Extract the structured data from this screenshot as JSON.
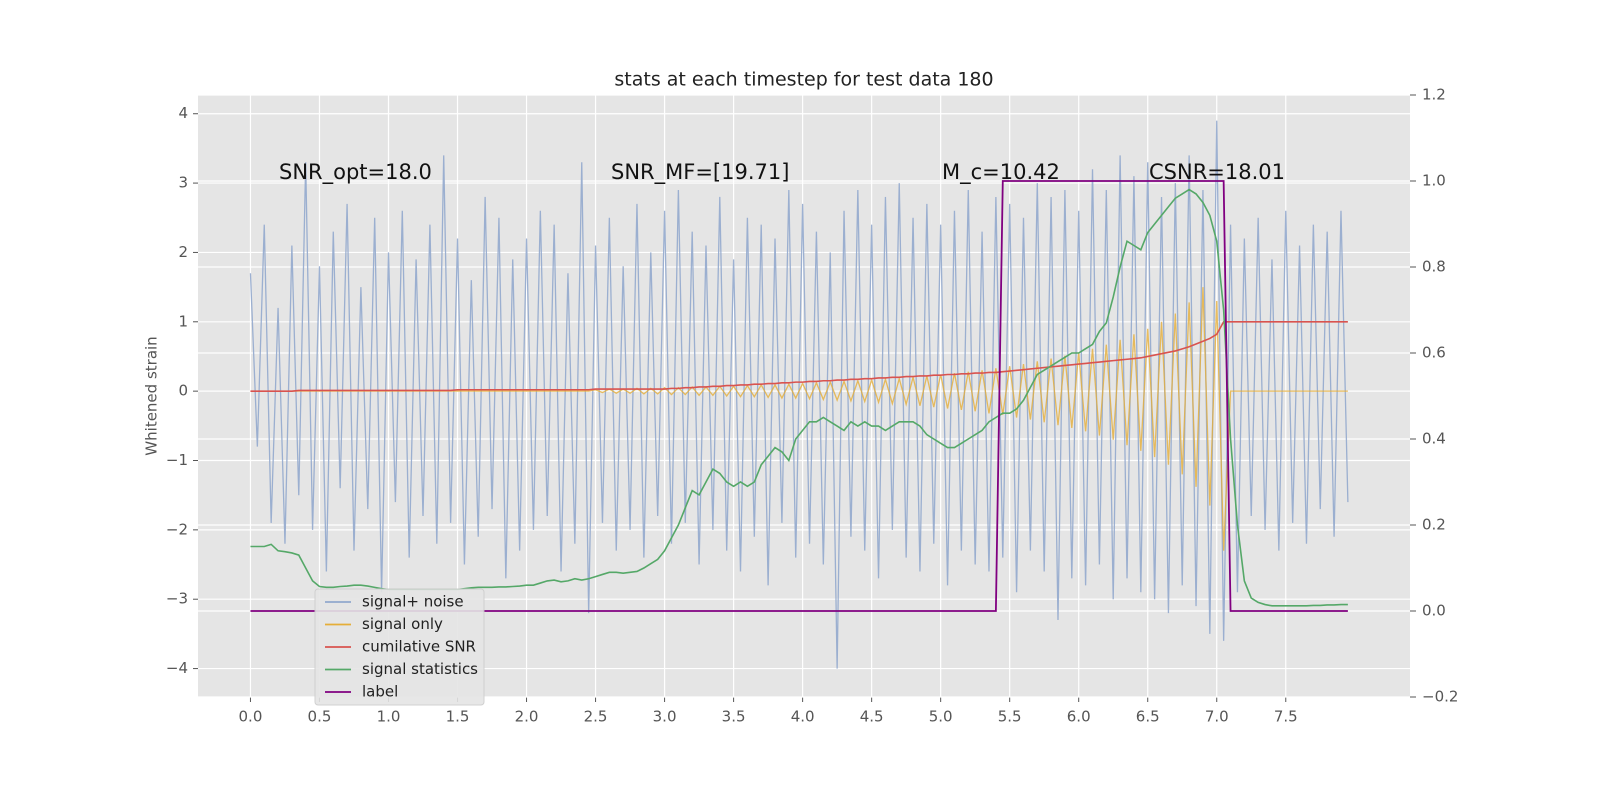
{
  "chart_data": {
    "type": "line",
    "title": "stats at each timestep for test data 180",
    "ylabel": "Whitened strain",
    "annotations": [
      "SNR_opt=18.0",
      "SNR_MF=[19.71]",
      "M_c=10.42",
      "CSNR=18.01"
    ],
    "xlim": [
      -0.38,
      8.4
    ],
    "ylim": [
      -4.41,
      4.27
    ],
    "y2lim": [
      -0.2,
      1.2
    ],
    "xticks": [
      {
        "value": 0,
        "label": "0.0"
      },
      {
        "value": 0.5,
        "label": "0.5"
      },
      {
        "value": 1,
        "label": "1.0"
      },
      {
        "value": 1.5,
        "label": "1.5"
      },
      {
        "value": 2,
        "label": "2.0"
      },
      {
        "value": 2.5,
        "label": "2.5"
      },
      {
        "value": 3,
        "label": "3.0"
      },
      {
        "value": 3.5,
        "label": "3.5"
      },
      {
        "value": 4,
        "label": "4.0"
      },
      {
        "value": 4.5,
        "label": "4.5"
      },
      {
        "value": 5,
        "label": "5.0"
      },
      {
        "value": 5.5,
        "label": "5.5"
      },
      {
        "value": 6,
        "label": "6.0"
      },
      {
        "value": 6.5,
        "label": "6.5"
      },
      {
        "value": 7,
        "label": "7.0"
      },
      {
        "value": 7.5,
        "label": "7.5"
      }
    ],
    "yticks": [
      {
        "value": -4,
        "label": "−4"
      },
      {
        "value": -3,
        "label": "−3"
      },
      {
        "value": -2,
        "label": "−2"
      },
      {
        "value": -1,
        "label": "−1"
      },
      0,
      1,
      2,
      3,
      4
    ],
    "y2ticks": [
      {
        "value": -0.2,
        "label": "−0.2"
      },
      {
        "value": 0,
        "label": "0.0"
      },
      {
        "value": 0.2,
        "label": "0.2"
      },
      {
        "value": 0.4,
        "label": "0.4"
      },
      {
        "value": 0.6,
        "label": "0.6"
      },
      {
        "value": 0.8,
        "label": "0.8"
      },
      {
        "value": 1,
        "label": "1.0"
      },
      {
        "value": 1.2,
        "label": "1.2"
      }
    ],
    "grid": true,
    "legend_loc": "lower left",
    "x": [
      0,
      0.05,
      0.1,
      0.15,
      0.2,
      0.25,
      0.3,
      0.35,
      0.4,
      0.45,
      0.5,
      0.55,
      0.6,
      0.65,
      0.7,
      0.75,
      0.8,
      0.85,
      0.9,
      0.95,
      1,
      1.05,
      1.1,
      1.15,
      1.2,
      1.25,
      1.3,
      1.35,
      1.4,
      1.45,
      1.5,
      1.55,
      1.6,
      1.65,
      1.7,
      1.75,
      1.8,
      1.85,
      1.9,
      1.95,
      2,
      2.05,
      2.1,
      2.15,
      2.2,
      2.25,
      2.3,
      2.35,
      2.4,
      2.45,
      2.5,
      2.55,
      2.6,
      2.65,
      2.7,
      2.75,
      2.8,
      2.85,
      2.9,
      2.95,
      3,
      3.05,
      3.1,
      3.15,
      3.2,
      3.25,
      3.3,
      3.35,
      3.4,
      3.45,
      3.5,
      3.55,
      3.6,
      3.65,
      3.7,
      3.75,
      3.8,
      3.85,
      3.9,
      3.95,
      4,
      4.05,
      4.1,
      4.15,
      4.2,
      4.25,
      4.3,
      4.35,
      4.4,
      4.45,
      4.5,
      4.55,
      4.6,
      4.65,
      4.7,
      4.75,
      4.8,
      4.85,
      4.9,
      4.95,
      5,
      5.05,
      5.1,
      5.15,
      5.2,
      5.25,
      5.3,
      5.35,
      5.4,
      5.45,
      5.5,
      5.55,
      5.6,
      5.65,
      5.7,
      5.75,
      5.8,
      5.85,
      5.9,
      5.95,
      6,
      6.05,
      6.1,
      6.15,
      6.2,
      6.25,
      6.3,
      6.35,
      6.4,
      6.45,
      6.5,
      6.55,
      6.6,
      6.65,
      6.7,
      6.75,
      6.8,
      6.85,
      6.9,
      6.95,
      7,
      7.05,
      7.1,
      7.15,
      7.2,
      7.25,
      7.3,
      7.35,
      7.4,
      7.45,
      7.5,
      7.55,
      7.6,
      7.65,
      7.7,
      7.75,
      7.8,
      7.85,
      7.9,
      7.95
    ],
    "series": [
      {
        "name": "signal+ noise",
        "color": "#92a8cd",
        "values": [
          1.7,
          -0.8,
          2.4,
          -1.9,
          1.2,
          -2.2,
          2.1,
          -1.5,
          3.3,
          -2.0,
          1.8,
          -2.6,
          2.3,
          -1.4,
          2.7,
          -2.3,
          1.5,
          -1.7,
          2.5,
          -2.9,
          2.0,
          -1.6,
          2.6,
          -2.4,
          1.9,
          -1.8,
          2.4,
          -2.2,
          3.4,
          -1.9,
          2.2,
          -2.5,
          1.6,
          -2.1,
          2.8,
          -1.7,
          2.5,
          -2.7,
          1.9,
          -2.3,
          2.2,
          -2.0,
          2.6,
          -1.8,
          2.4,
          -2.6,
          1.7,
          -2.2,
          3.3,
          -3.2,
          2.1,
          -1.9,
          2.5,
          -2.3,
          1.8,
          -2.0,
          2.7,
          -2.4,
          2.0,
          -1.8,
          2.6,
          -2.2,
          2.9,
          -1.9,
          2.3,
          -2.5,
          2.1,
          -2.0,
          2.8,
          -2.3,
          1.9,
          -2.6,
          2.5,
          -2.1,
          2.4,
          -2.8,
          2.2,
          -1.9,
          2.9,
          -2.4,
          2.7,
          -2.2,
          2.3,
          -2.5,
          2.0,
          -4.0,
          2.6,
          -2.1,
          2.9,
          -2.3,
          2.4,
          -2.7,
          2.8,
          -2.0,
          3.0,
          -2.4,
          2.5,
          -2.6,
          2.7,
          -2.2,
          2.4,
          -2.8,
          2.6,
          -2.3,
          2.9,
          -2.5,
          2.3,
          -2.6,
          2.8,
          -2.4,
          2.7,
          -2.9,
          2.5,
          -2.3,
          3.0,
          -2.6,
          2.8,
          -3.3,
          2.9,
          -2.7,
          2.6,
          -2.8,
          3.2,
          -2.5,
          2.9,
          -3.0,
          3.4,
          -2.7,
          3.1,
          -2.9,
          3.3,
          -3.0,
          2.8,
          -3.2,
          3.0,
          -2.8,
          3.4,
          -3.1,
          2.9,
          -3.5,
          3.9,
          -3.6,
          2.4,
          -2.9,
          2.2,
          -1.8,
          2.5,
          -2.0,
          1.9,
          -2.3,
          2.6,
          -1.9,
          2.1,
          -2.2,
          2.4,
          -1.7,
          2.3,
          -2.1,
          2.6,
          -1.6
        ]
      },
      {
        "name": "signal only",
        "color": "#e5ae38",
        "values": [
          0,
          0,
          0,
          0,
          0,
          0,
          0,
          0,
          0,
          0,
          0,
          0,
          0,
          0,
          0,
          0,
          0,
          0,
          0,
          0,
          0,
          0,
          0,
          0,
          0,
          0,
          0,
          0,
          0,
          0,
          0,
          0,
          0,
          0,
          0,
          0,
          0,
          0,
          0,
          0,
          0,
          0,
          0,
          0,
          0,
          0,
          0,
          0,
          0,
          0,
          0.02,
          -0.02,
          0.03,
          -0.03,
          0.03,
          -0.03,
          0.04,
          -0.04,
          0.04,
          -0.04,
          0.05,
          -0.05,
          0.05,
          -0.05,
          0.06,
          -0.06,
          0.06,
          -0.06,
          0.07,
          -0.07,
          0.07,
          -0.08,
          0.08,
          -0.08,
          0.09,
          -0.09,
          0.09,
          -0.1,
          0.1,
          -0.1,
          0.11,
          -0.11,
          0.12,
          -0.12,
          0.13,
          -0.13,
          0.14,
          -0.14,
          0.15,
          -0.15,
          0.16,
          -0.16,
          0.17,
          -0.18,
          0.18,
          -0.19,
          0.2,
          -0.21,
          0.22,
          -0.23,
          0.24,
          -0.25,
          0.26,
          -0.27,
          0.28,
          -0.29,
          0.3,
          -0.32,
          0.33,
          -0.34,
          0.36,
          -0.38,
          0.39,
          -0.41,
          0.43,
          -0.45,
          0.47,
          -0.49,
          0.51,
          -0.53,
          0.55,
          -0.58,
          0.61,
          -0.64,
          0.67,
          -0.7,
          0.74,
          -0.78,
          0.82,
          -0.86,
          0.9,
          -0.95,
          1.0,
          -1.06,
          1.12,
          -1.2,
          1.28,
          -1.38,
          1.5,
          -1.65,
          1.3,
          -2.3,
          0,
          0,
          0,
          0,
          0,
          0,
          0,
          0,
          0,
          0,
          0,
          0,
          0,
          0,
          0,
          0,
          0,
          0
        ]
      },
      {
        "name": "cumilative SNR",
        "color": "#d9534f",
        "values": [
          0,
          0,
          0,
          0,
          0,
          0,
          0,
          0.01,
          0.01,
          0.01,
          0.01,
          0.01,
          0.01,
          0.01,
          0.01,
          0.01,
          0.01,
          0.01,
          0.01,
          0.01,
          0.01,
          0.01,
          0.01,
          0.01,
          0.01,
          0.01,
          0.01,
          0.01,
          0.01,
          0.01,
          0.02,
          0.02,
          0.02,
          0.02,
          0.02,
          0.02,
          0.02,
          0.02,
          0.02,
          0.02,
          0.02,
          0.02,
          0.02,
          0.02,
          0.02,
          0.02,
          0.02,
          0.02,
          0.02,
          0.02,
          0.03,
          0.03,
          0.03,
          0.03,
          0.03,
          0.03,
          0.03,
          0.03,
          0.03,
          0.03,
          0.03,
          0.04,
          0.04,
          0.05,
          0.05,
          0.06,
          0.06,
          0.07,
          0.07,
          0.08,
          0.08,
          0.09,
          0.09,
          0.1,
          0.1,
          0.11,
          0.11,
          0.12,
          0.12,
          0.13,
          0.13,
          0.14,
          0.14,
          0.15,
          0.15,
          0.16,
          0.16,
          0.17,
          0.17,
          0.18,
          0.18,
          0.19,
          0.19,
          0.2,
          0.2,
          0.21,
          0.21,
          0.22,
          0.22,
          0.23,
          0.23,
          0.24,
          0.24,
          0.25,
          0.25,
          0.26,
          0.26,
          0.27,
          0.27,
          0.28,
          0.29,
          0.3,
          0.31,
          0.32,
          0.33,
          0.34,
          0.35,
          0.36,
          0.37,
          0.38,
          0.39,
          0.4,
          0.41,
          0.42,
          0.43,
          0.44,
          0.45,
          0.46,
          0.47,
          0.48,
          0.5,
          0.52,
          0.54,
          0.56,
          0.58,
          0.61,
          0.64,
          0.68,
          0.72,
          0.76,
          0.82,
          1,
          1,
          1,
          1,
          1,
          1,
          1,
          1,
          1,
          1,
          1,
          1,
          1,
          1,
          1,
          1,
          1,
          1,
          1
        ]
      },
      {
        "name": "signal statistics",
        "color": "#55a868",
        "axis": "y2",
        "values": [
          0.15,
          0.15,
          0.15,
          0.155,
          0.14,
          0.138,
          0.135,
          0.13,
          0.1,
          0.07,
          0.057,
          0.055,
          0.055,
          0.057,
          0.058,
          0.06,
          0.06,
          0.058,
          0.055,
          0.052,
          0.05,
          0.05,
          0.05,
          0.05,
          0.05,
          0.05,
          0.05,
          0.05,
          0.05,
          0.05,
          0.05,
          0.052,
          0.054,
          0.055,
          0.055,
          0.055,
          0.056,
          0.056,
          0.057,
          0.058,
          0.06,
          0.06,
          0.065,
          0.07,
          0.072,
          0.068,
          0.07,
          0.075,
          0.072,
          0.075,
          0.08,
          0.085,
          0.09,
          0.09,
          0.088,
          0.09,
          0.092,
          0.1,
          0.11,
          0.12,
          0.14,
          0.17,
          0.2,
          0.24,
          0.28,
          0.27,
          0.3,
          0.33,
          0.32,
          0.3,
          0.29,
          0.3,
          0.29,
          0.3,
          0.34,
          0.36,
          0.38,
          0.37,
          0.35,
          0.4,
          0.42,
          0.44,
          0.44,
          0.45,
          0.44,
          0.43,
          0.42,
          0.44,
          0.43,
          0.44,
          0.43,
          0.43,
          0.42,
          0.43,
          0.44,
          0.44,
          0.44,
          0.43,
          0.41,
          0.4,
          0.39,
          0.38,
          0.38,
          0.39,
          0.4,
          0.41,
          0.42,
          0.44,
          0.45,
          0.46,
          0.46,
          0.47,
          0.49,
          0.52,
          0.55,
          0.56,
          0.57,
          0.58,
          0.59,
          0.6,
          0.6,
          0.61,
          0.62,
          0.65,
          0.67,
          0.73,
          0.8,
          0.86,
          0.85,
          0.84,
          0.88,
          0.9,
          0.92,
          0.94,
          0.96,
          0.97,
          0.98,
          0.97,
          0.95,
          0.92,
          0.86,
          0.7,
          0.4,
          0.2,
          0.07,
          0.03,
          0.02,
          0.015,
          0.012,
          0.012,
          0.012,
          0.012,
          0.012,
          0.012,
          0.013,
          0.013,
          0.014,
          0.014,
          0.015,
          0.015
        ]
      },
      {
        "name": "label",
        "color": "#800080",
        "axis": "y2",
        "values": [
          0,
          0,
          0,
          0,
          0,
          0,
          0,
          0,
          0,
          0,
          0,
          0,
          0,
          0,
          0,
          0,
          0,
          0,
          0,
          0,
          0,
          0,
          0,
          0,
          0,
          0,
          0,
          0,
          0,
          0,
          0,
          0,
          0,
          0,
          0,
          0,
          0,
          0,
          0,
          0,
          0,
          0,
          0,
          0,
          0,
          0,
          0,
          0,
          0,
          0,
          0,
          0,
          0,
          0,
          0,
          0,
          0,
          0,
          0,
          0,
          0,
          0,
          0,
          0,
          0,
          0,
          0,
          0,
          0,
          0,
          0,
          0,
          0,
          0,
          0,
          0,
          0,
          0,
          0,
          0,
          0,
          0,
          0,
          0,
          0,
          0,
          0,
          0,
          0,
          0,
          0,
          0,
          0,
          0,
          0,
          0,
          0,
          0,
          0,
          0,
          0,
          0,
          0,
          0,
          0,
          0,
          0,
          0,
          0,
          1,
          1,
          1,
          1,
          1,
          1,
          1,
          1,
          1,
          1,
          1,
          1,
          1,
          1,
          1,
          1,
          1,
          1,
          1,
          1,
          1,
          1,
          1,
          1,
          1,
          1,
          1,
          1,
          1,
          1,
          1,
          1,
          1,
          0,
          0,
          0,
          0,
          0,
          0,
          0,
          0,
          0,
          0,
          0,
          0,
          0,
          0,
          0,
          0,
          0,
          0
        ]
      }
    ]
  }
}
